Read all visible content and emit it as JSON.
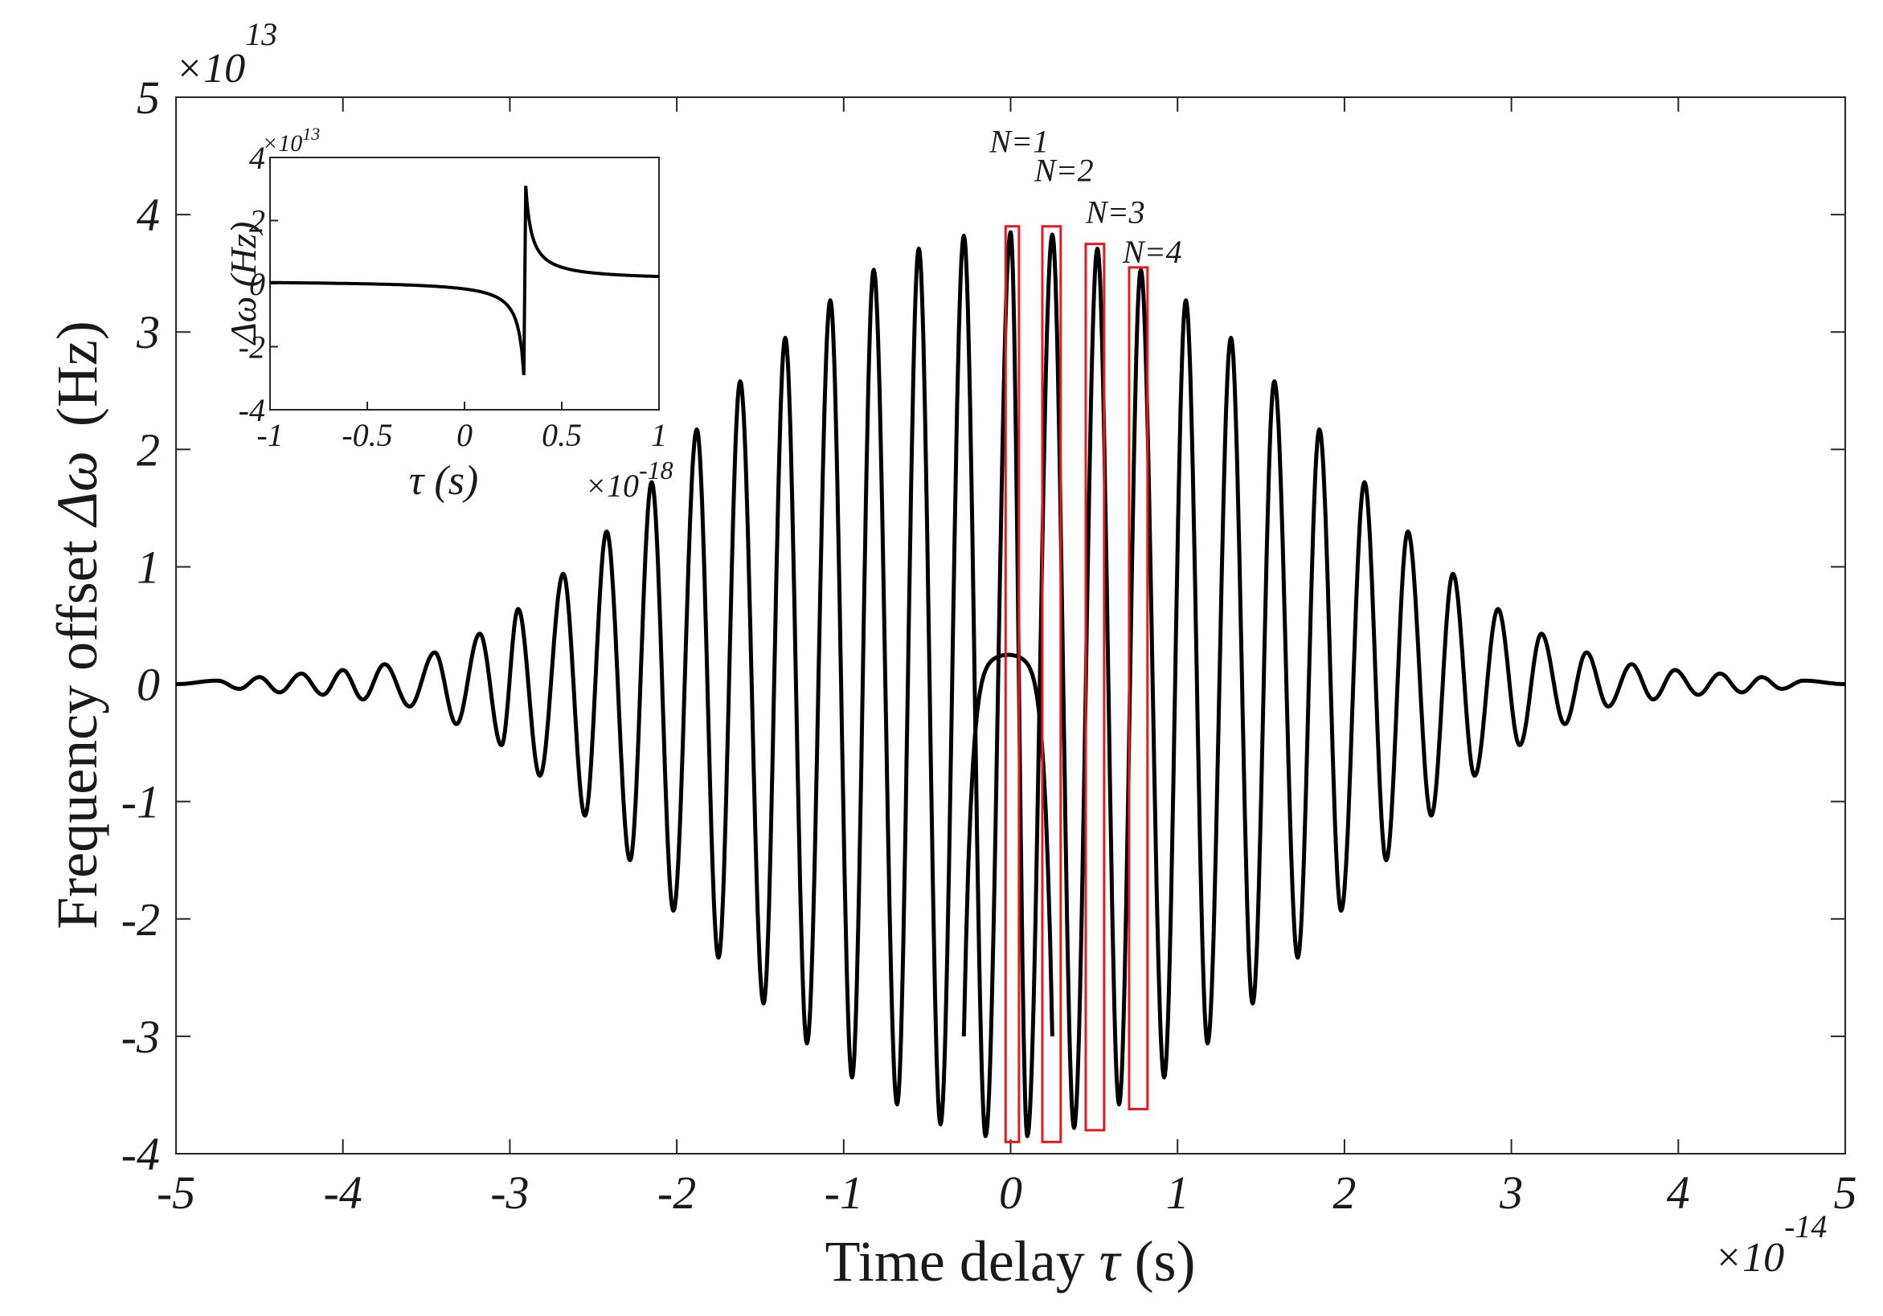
{
  "chart_data": [
    {
      "type": "line",
      "role": "main",
      "xlabel_text": "Time delay ",
      "xlabel_symbol": "τ",
      "xlabel_unit": " (s)",
      "ylabel_text": "Frequency offset ",
      "ylabel_symbol": "Δω",
      "ylabel_unit": "(Hz)",
      "xlim": [
        -5,
        5
      ],
      "ylim": [
        -4,
        5
      ],
      "xticks": [
        "-5",
        "-4",
        "-3",
        "-2",
        "-1",
        "0",
        "1",
        "2",
        "3",
        "4",
        "5"
      ],
      "yticks": [
        "-4",
        "-3",
        "-2",
        "-1",
        "0",
        "1",
        "2",
        "3",
        "4",
        "5"
      ],
      "x_multiplier_base": "×10",
      "x_multiplier_exp": "-14",
      "y_multiplier_base": "×10",
      "y_multiplier_exp": "13",
      "grid": false,
      "line_color": "#000000",
      "series": [
        {
          "values_note_x_units": "1e-14 s",
          "peaks": [
            {
              "x": -4.75,
              "y": 0.03
            },
            {
              "x": -4.5,
              "y": 0.06
            },
            {
              "x": -4.25,
              "y": 0.09
            },
            {
              "x": -4.0,
              "y": 0.12
            },
            {
              "x": -3.75,
              "y": 0.17
            },
            {
              "x": -3.45,
              "y": 0.27
            },
            {
              "x": -3.18,
              "y": 0.43
            },
            {
              "x": -2.95,
              "y": 0.64
            },
            {
              "x": -2.68,
              "y": 0.94
            },
            {
              "x": -2.42,
              "y": 1.3
            },
            {
              "x": -2.15,
              "y": 1.72
            },
            {
              "x": -1.88,
              "y": 2.17
            },
            {
              "x": -1.62,
              "y": 2.58
            },
            {
              "x": -1.35,
              "y": 2.95
            },
            {
              "x": -1.08,
              "y": 3.27
            },
            {
              "x": -0.82,
              "y": 3.53
            },
            {
              "x": -0.55,
              "y": 3.71
            },
            {
              "x": -0.28,
              "y": 3.82
            },
            {
              "x": 0.0,
              "y": 3.85
            },
            {
              "x": 0.25,
              "y": 3.83
            },
            {
              "x": 0.52,
              "y": 3.71
            },
            {
              "x": 0.78,
              "y": 3.53
            },
            {
              "x": 1.05,
              "y": 3.27
            },
            {
              "x": 1.32,
              "y": 2.95
            },
            {
              "x": 1.58,
              "y": 2.58
            },
            {
              "x": 1.85,
              "y": 2.17
            },
            {
              "x": 2.12,
              "y": 1.72
            },
            {
              "x": 2.38,
              "y": 1.3
            },
            {
              "x": 2.65,
              "y": 0.94
            },
            {
              "x": 2.92,
              "y": 0.64
            },
            {
              "x": 3.18,
              "y": 0.43
            },
            {
              "x": 3.45,
              "y": 0.27
            },
            {
              "x": 3.72,
              "y": 0.17
            },
            {
              "x": 3.98,
              "y": 0.12
            },
            {
              "x": 4.25,
              "y": 0.09
            },
            {
              "x": 4.5,
              "y": 0.06
            },
            {
              "x": 4.75,
              "y": 0.03
            }
          ],
          "troughs": [
            {
              "x": -4.62,
              "y": -0.04
            },
            {
              "x": -4.38,
              "y": -0.07
            },
            {
              "x": -4.12,
              "y": -0.09
            },
            {
              "x": -3.88,
              "y": -0.13
            },
            {
              "x": -3.6,
              "y": -0.19
            },
            {
              "x": -3.32,
              "y": -0.34
            },
            {
              "x": -3.05,
              "y": -0.52
            },
            {
              "x": -2.82,
              "y": -0.78
            },
            {
              "x": -2.55,
              "y": -1.12
            },
            {
              "x": -2.28,
              "y": -1.5
            },
            {
              "x": -2.02,
              "y": -1.93
            },
            {
              "x": -1.75,
              "y": -2.33
            },
            {
              "x": -1.48,
              "y": -2.72
            },
            {
              "x": -1.22,
              "y": -3.06
            },
            {
              "x": -0.95,
              "y": -3.35
            },
            {
              "x": -0.68,
              "y": -3.58
            },
            {
              "x": -0.42,
              "y": -3.75
            },
            {
              "x": -0.15,
              "y": -3.85
            },
            {
              "x": 0.1,
              "y": -3.85
            },
            {
              "x": 0.38,
              "y": -3.78
            },
            {
              "x": 0.65,
              "y": -3.58
            },
            {
              "x": 0.92,
              "y": -3.35
            },
            {
              "x": 1.18,
              "y": -3.06
            },
            {
              "x": 1.45,
              "y": -2.72
            },
            {
              "x": 1.72,
              "y": -2.33
            },
            {
              "x": 1.98,
              "y": -1.93
            },
            {
              "x": 2.25,
              "y": -1.5
            },
            {
              "x": 2.52,
              "y": -1.12
            },
            {
              "x": 2.78,
              "y": -0.78
            },
            {
              "x": 3.05,
              "y": -0.52
            },
            {
              "x": 3.32,
              "y": -0.34
            },
            {
              "x": 3.58,
              "y": -0.19
            },
            {
              "x": 3.85,
              "y": -0.13
            },
            {
              "x": 4.12,
              "y": -0.09
            },
            {
              "x": 4.38,
              "y": -0.07
            },
            {
              "x": 4.62,
              "y": -0.04
            }
          ],
          "central_arc": {
            "x_from": -0.28,
            "x_to": 0.25,
            "peak": 0.25
          }
        }
      ],
      "annotations": [
        {
          "label": "N=1",
          "box_x": [
            -0.03,
            0.05
          ],
          "box_y": [
            -3.9,
            3.9
          ]
        },
        {
          "label": "N=2",
          "box_x": [
            0.19,
            0.3
          ],
          "box_y": [
            -3.9,
            3.9
          ]
        },
        {
          "label": "N=3",
          "box_x": [
            0.45,
            0.56
          ],
          "box_y": [
            -3.8,
            3.75
          ]
        },
        {
          "label": "N=4",
          "box_x": [
            0.71,
            0.82
          ],
          "box_y": [
            -3.62,
            3.55
          ]
        }
      ],
      "annotation_color": "#e8191f"
    },
    {
      "type": "line",
      "role": "inset",
      "xlabel_symbol": "τ",
      "xlabel_unit": " (s)",
      "ylabel_symbol": "Δω",
      "ylabel_unit": " (Hz)",
      "xlim": [
        -1,
        1
      ],
      "ylim": [
        -4,
        4
      ],
      "xticks": [
        "-1",
        "-0.5",
        "0",
        "0.5",
        "1"
      ],
      "yticks": [
        "-4",
        "-2",
        "0",
        "2",
        "4"
      ],
      "x_multiplier_base": "×10",
      "x_multiplier_exp": "-18",
      "y_multiplier_base": "×10",
      "y_multiplier_exp": "13",
      "pole_x": 0.31,
      "min_before_pole": -3.6,
      "max_after_pole": 3.6,
      "baseline": 0.1
    }
  ]
}
